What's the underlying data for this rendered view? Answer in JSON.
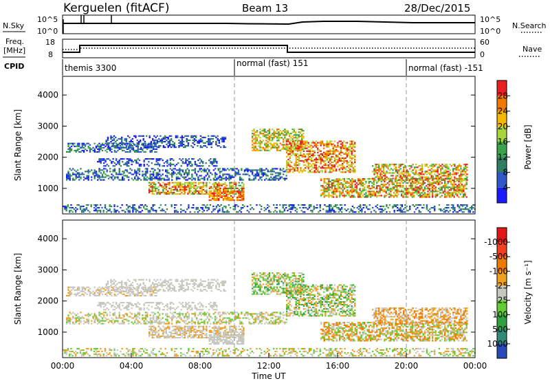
{
  "header": {
    "station": "Kerguelen (fitACF)",
    "beam": "Beam 13",
    "date": "28/Dec/2015"
  },
  "strip_panels": {
    "nsky": {
      "label": "N.Sky",
      "ticks": [
        "10^5",
        "10^0"
      ]
    },
    "nsearch": {
      "label": "N.Search",
      "ticks": [
        "10^5",
        "10^0"
      ]
    },
    "freq": {
      "label_line1": "Freq.",
      "label_line2": "[MHz]",
      "ticks": [
        "18",
        "8"
      ]
    },
    "nave": {
      "label": "Nave",
      "ticks": [
        "60",
        "0"
      ]
    },
    "cpid": {
      "label": "CPID",
      "segments": [
        "themis 3300",
        "normal (fast) 151",
        "normal (fast) -151"
      ]
    }
  },
  "chart_data": [
    {
      "type": "heatmap",
      "title": "",
      "xlabel": "",
      "ylabel": "Slant Range [km]",
      "x_range_hours": [
        0,
        24
      ],
      "ylim": [
        180,
        4600
      ],
      "yticks": [
        1000,
        2000,
        3000,
        4000
      ],
      "colorbar": {
        "label": "Power [dB]",
        "ticks": [
          "4",
          "8",
          "12",
          "16",
          "20",
          "24",
          "28"
        ],
        "colors": [
          "#1a1aff",
          "#3158c8",
          "#2e7d64",
          "#3aa24a",
          "#a6d63a",
          "#f5b800",
          "#f07a00",
          "#e82020"
        ]
      }
    },
    {
      "type": "heatmap",
      "title": "",
      "xlabel": "Time UT",
      "ylabel": "Slant Range [km]",
      "x_ticks": [
        "00:00",
        "04:00",
        "08:00",
        "12:00",
        "16:00",
        "20:00",
        "00:00"
      ],
      "ylim": [
        180,
        4600
      ],
      "yticks": [
        1000,
        2000,
        3000,
        4000
      ],
      "colorbar": {
        "label": "Velocity [m s⁻¹]",
        "ticks": [
          "1000",
          "500",
          "100",
          "25",
          "-25",
          "-100",
          "-500",
          "-1000"
        ],
        "colors": [
          "#2848b8",
          "#2f8a78",
          "#30a040",
          "#66cc33",
          "#c8c8c0",
          "#f0a020",
          "#f07a00",
          "#f04020",
          "#e01818"
        ]
      }
    }
  ]
}
